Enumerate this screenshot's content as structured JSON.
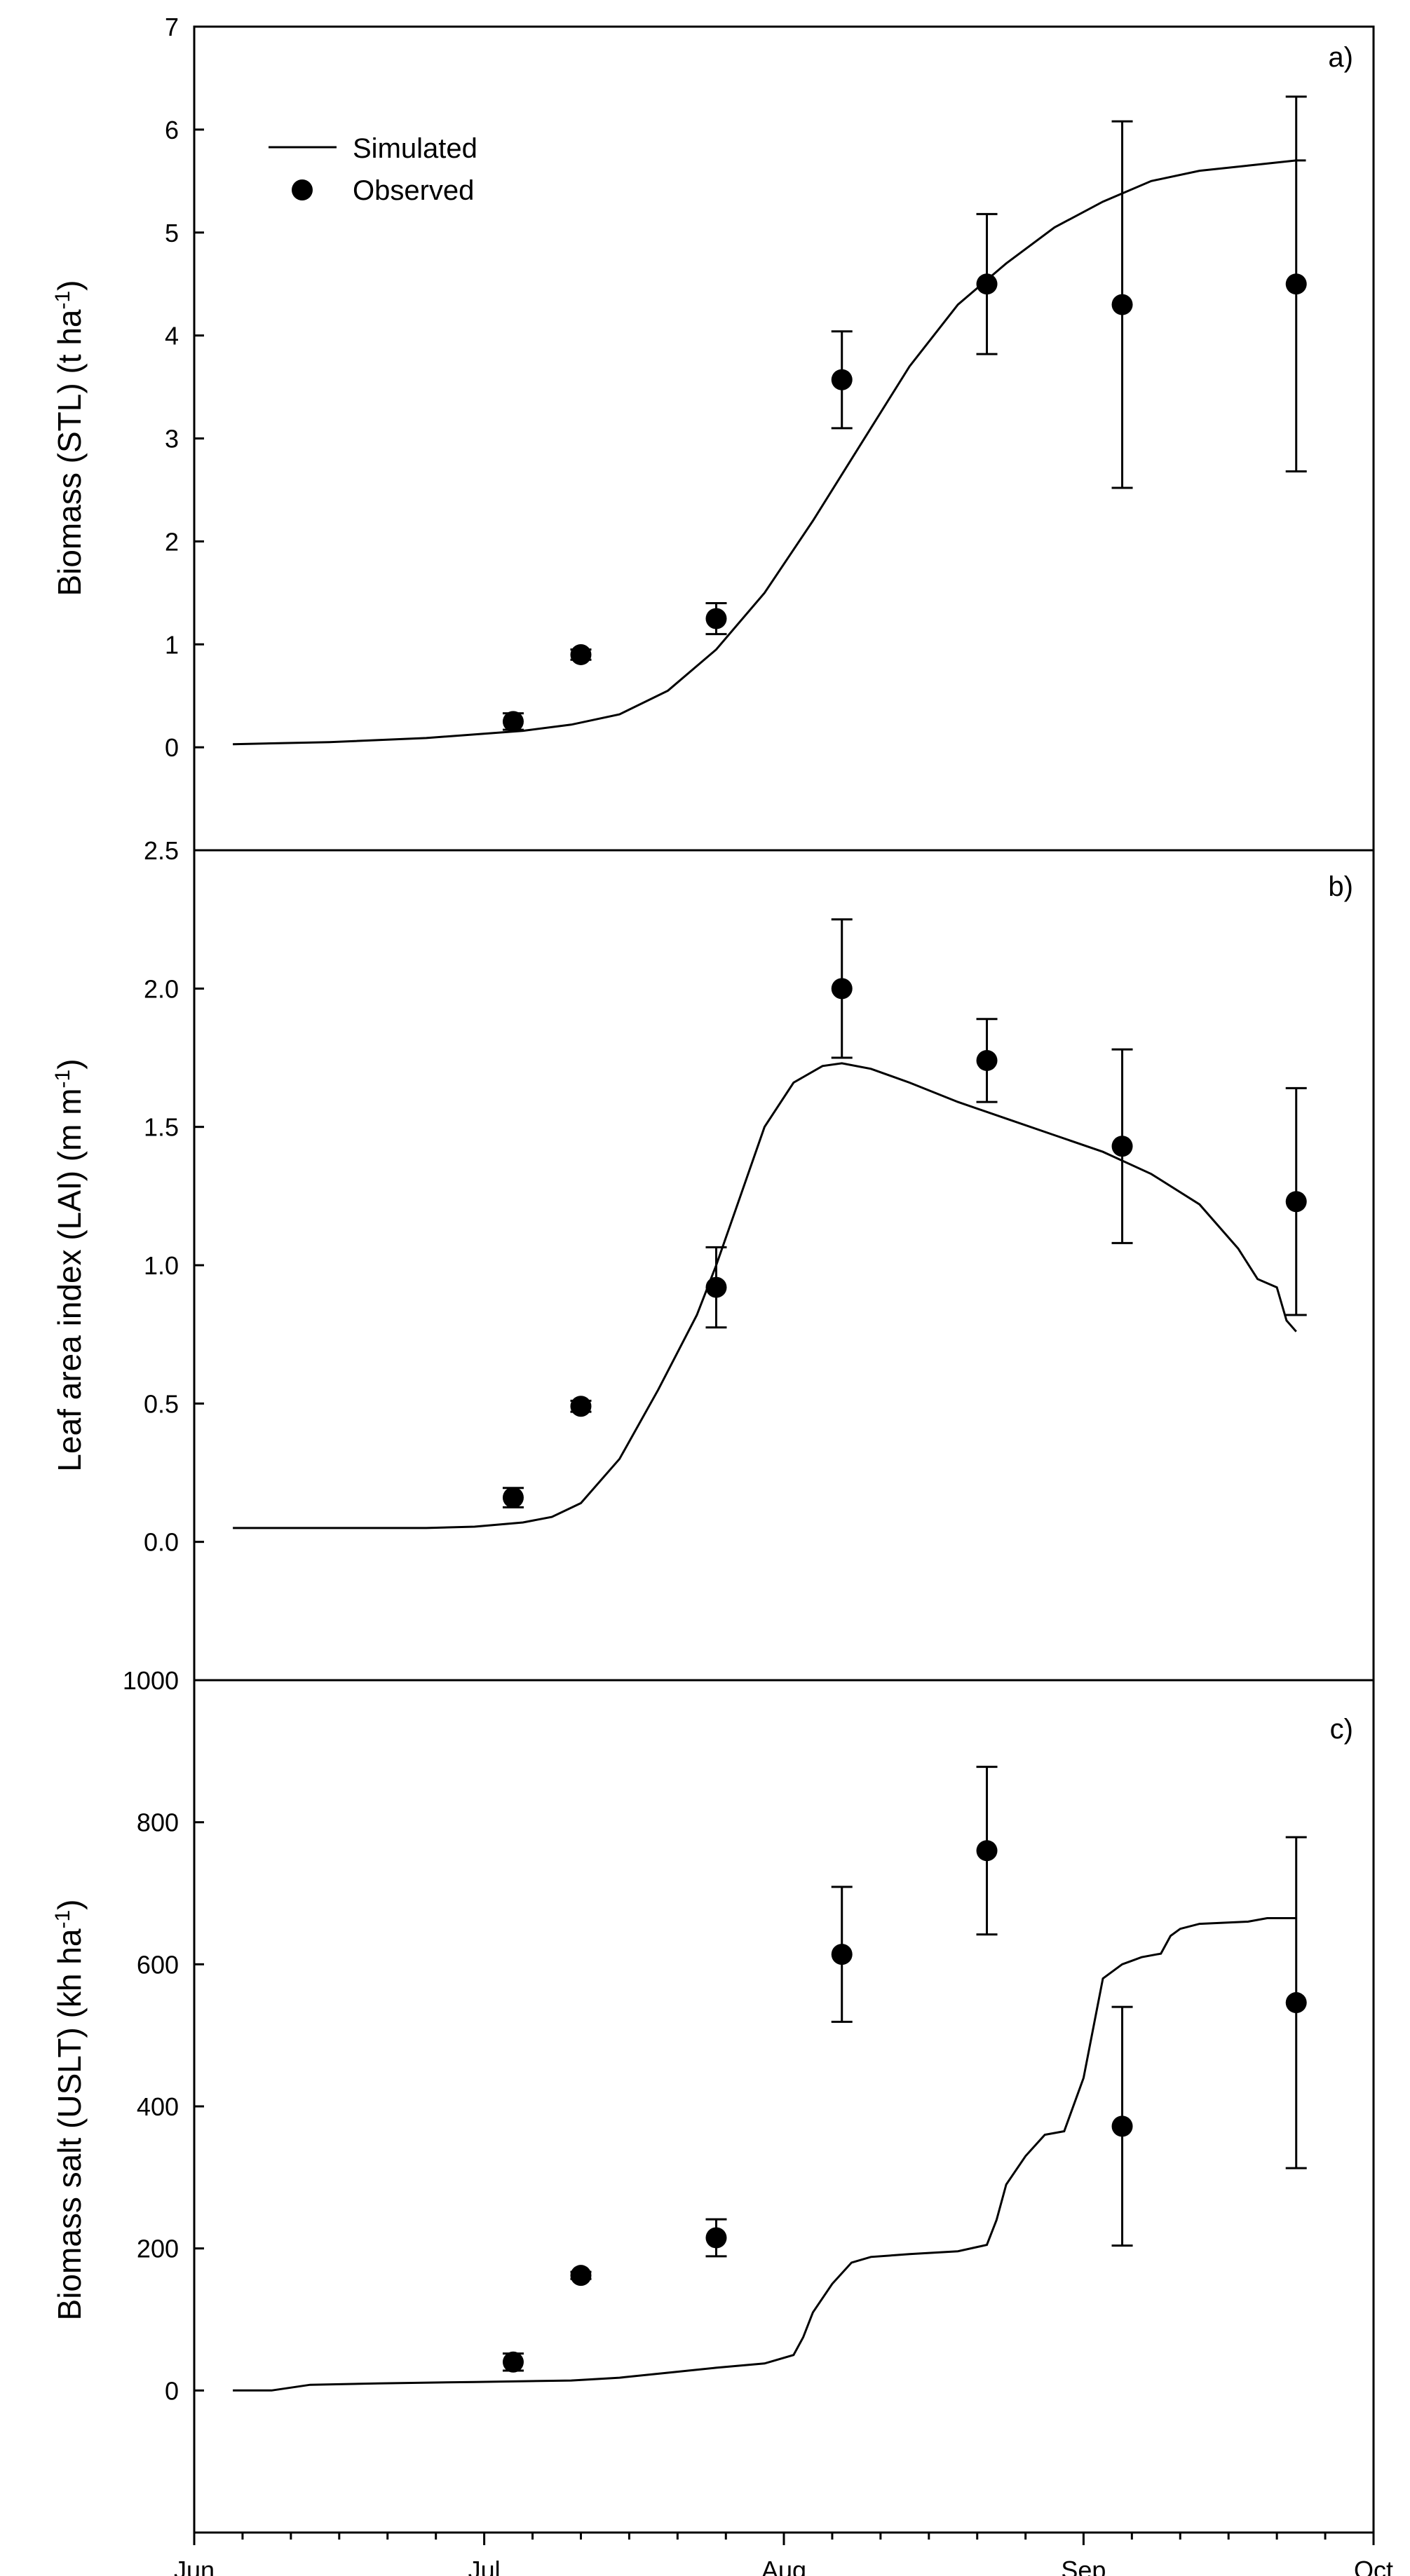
{
  "chart_data": [
    {
      "type": "line",
      "panel_label": "a)",
      "ylabel": "Biomass (STL) (t ha-1)",
      "ylabel_parts": [
        "Biomass (STL) (t ha",
        "-1",
        ")"
      ],
      "ylim": [
        -1,
        7
      ],
      "yticks": [
        0,
        1,
        2,
        3,
        4,
        5,
        6,
        7
      ],
      "ytick_labels": [
        "0",
        "1",
        "2",
        "3",
        "4",
        "5",
        "6",
        "7"
      ],
      "legend": {
        "position": "top-left",
        "simulated_label": "Simulated",
        "observed_label": "Observed"
      },
      "simulated": {
        "name": "Simulated",
        "x": [
          0,
          10,
          20,
          30,
          35,
          40,
          45,
          50,
          55,
          60,
          65,
          70,
          75,
          80,
          85,
          90,
          95,
          100,
          105,
          110,
          111
        ],
        "y": [
          0.03,
          0.05,
          0.09,
          0.16,
          0.22,
          0.32,
          0.55,
          0.95,
          1.5,
          2.2,
          2.95,
          3.7,
          4.3,
          4.7,
          5.05,
          5.3,
          5.5,
          5.6,
          5.65,
          5.7,
          5.7
        ]
      },
      "observed": {
        "name": "Observed",
        "x": [
          29,
          36,
          50,
          63,
          78,
          92,
          110
        ],
        "y": [
          0.25,
          0.9,
          1.25,
          3.57,
          4.5,
          4.3,
          4.5
        ],
        "err": [
          0.08,
          0.05,
          0.15,
          0.47,
          0.68,
          1.78,
          1.82
        ]
      }
    },
    {
      "type": "line",
      "panel_label": "b)",
      "ylabel": "Leaf area index (LAI) (m m-1)",
      "ylabel_parts": [
        "Leaf area index (LAI) (m m",
        "-1",
        ")"
      ],
      "ylim": [
        -0.5,
        2.5
      ],
      "yticks": [
        0.0,
        0.5,
        1.0,
        1.5,
        2.0,
        2.5
      ],
      "ytick_labels": [
        "0.0",
        "0.5",
        "1.0",
        "1.5",
        "2.0",
        "2.5"
      ],
      "simulated": {
        "name": "Simulated",
        "x": [
          0,
          10,
          20,
          25,
          30,
          33,
          36,
          40,
          44,
          48,
          50,
          52,
          55,
          58,
          61,
          63,
          66,
          70,
          75,
          80,
          85,
          90,
          95,
          100,
          104,
          106,
          108,
          109,
          110
        ],
        "y": [
          0.05,
          0.05,
          0.05,
          0.055,
          0.07,
          0.09,
          0.14,
          0.3,
          0.55,
          0.82,
          1.0,
          1.2,
          1.5,
          1.66,
          1.72,
          1.73,
          1.71,
          1.66,
          1.59,
          1.53,
          1.47,
          1.41,
          1.33,
          1.22,
          1.06,
          0.95,
          0.92,
          0.8,
          0.76
        ]
      },
      "observed": {
        "name": "Observed",
        "x": [
          29,
          36,
          50,
          63,
          78,
          92,
          110
        ],
        "y": [
          0.16,
          0.49,
          0.92,
          2.0,
          1.74,
          1.43,
          1.23
        ],
        "err": [
          0.035,
          0.02,
          0.145,
          0.25,
          0.15,
          0.35,
          0.41
        ]
      }
    },
    {
      "type": "line",
      "panel_label": "c)",
      "ylabel": "Biomass salt (USLT) (kh ha-1)",
      "ylabel_parts": [
        "Biomass salt (USLT) (kh ha",
        "-1",
        ")"
      ],
      "ylim": [
        -200,
        1000
      ],
      "yticks": [
        0,
        200,
        400,
        600,
        800,
        1000
      ],
      "ytick_labels": [
        "0",
        "200",
        "400",
        "600",
        "800",
        "1000"
      ],
      "simulated": {
        "name": "Simulated",
        "x": [
          0,
          4,
          8,
          15,
          25,
          35,
          40,
          45,
          50,
          55,
          58,
          59,
          60,
          62,
          64,
          66,
          70,
          75,
          78,
          79,
          80,
          82,
          84,
          86,
          88,
          90,
          92,
          93,
          94,
          96,
          97,
          98,
          100,
          105,
          107,
          108,
          110
        ],
        "y": [
          0,
          0,
          8,
          10,
          12,
          14,
          18,
          25,
          32,
          38,
          50,
          75,
          110,
          150,
          180,
          188,
          192,
          196,
          205,
          240,
          290,
          330,
          360,
          365,
          440,
          580,
          600,
          605,
          610,
          615,
          640,
          650,
          657,
          660,
          665,
          665,
          665
        ]
      },
      "observed": {
        "name": "Observed",
        "x": [
          29,
          36,
          50,
          63,
          78,
          92,
          110
        ],
        "y": [
          40,
          162,
          215,
          614,
          760,
          372,
          546
        ],
        "err": [
          12,
          5,
          26,
          95,
          118,
          168,
          233
        ]
      }
    }
  ],
  "x_axis": {
    "xlim": [
      -4,
      118
    ],
    "major_ticks": [
      -4,
      26,
      57,
      88,
      118
    ],
    "major_labels": [
      "Jun",
      "Jul",
      "Aug",
      "Sep",
      "Oct"
    ]
  }
}
